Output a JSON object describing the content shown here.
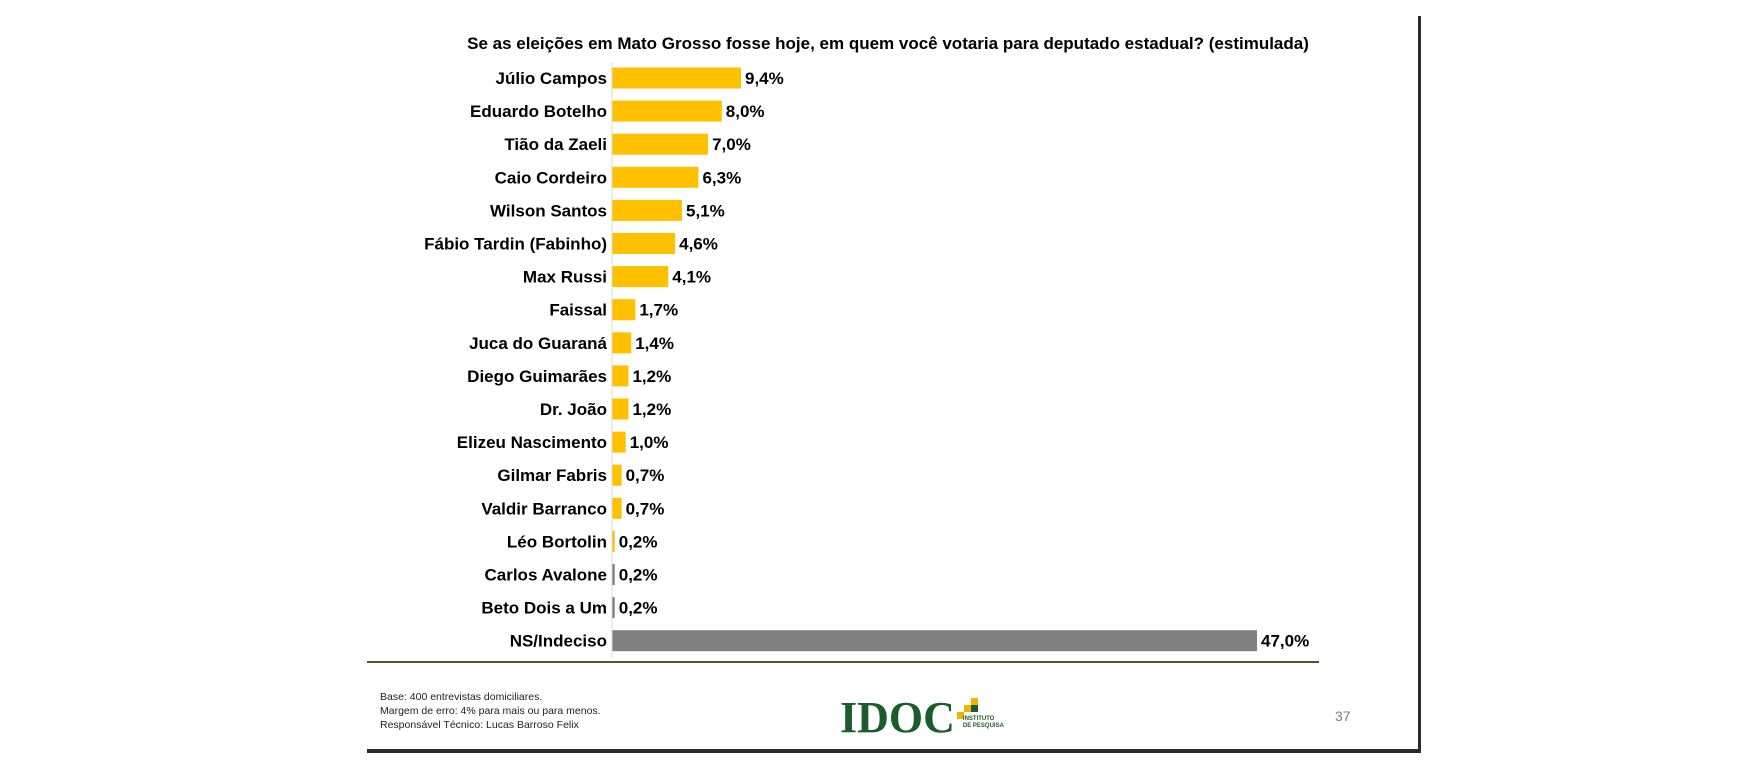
{
  "chart_data": {
    "type": "bar",
    "orientation": "horizontal",
    "title": "Se as eleições em Mato Grosso fosse hoje, em quem você votaria para deputado estadual? (estimulada)",
    "categories": [
      "Júlio Campos",
      "Eduardo Botelho",
      "Tião da Zaeli",
      "Caio Cordeiro",
      "Wilson Santos",
      "Fábio Tardin (Fabinho)",
      "Max Russi",
      "Faissal",
      "Juca do Guaraná",
      "Diego Guimarães",
      "Dr. João",
      "Elizeu Nascimento",
      "Gilmar Fabris",
      "Valdir Barranco",
      "Léo Bortolin",
      "Carlos Avalone",
      "Beto Dois a Um",
      "NS/Indeciso"
    ],
    "values": [
      9.4,
      8.0,
      7.0,
      6.3,
      5.1,
      4.6,
      4.1,
      1.7,
      1.4,
      1.2,
      1.2,
      1.0,
      0.7,
      0.7,
      0.2,
      0.2,
      0.2,
      47.0
    ],
    "value_labels": [
      "9,4%",
      "8,0%",
      "7,0%",
      "6,3%",
      "5,1%",
      "4,6%",
      "4,1%",
      "1,7%",
      "1,4%",
      "1,2%",
      "1,2%",
      "1,0%",
      "0,7%",
      "0,7%",
      "0,2%",
      "0,2%",
      "0,2%",
      "47,0%"
    ],
    "bar_colors": [
      "#FFC000",
      "#FFC000",
      "#FFC000",
      "#FFC000",
      "#FFC000",
      "#FFC000",
      "#FFC000",
      "#FFC000",
      "#FFC000",
      "#FFC000",
      "#FFC000",
      "#FFC000",
      "#FFC000",
      "#FFC000",
      "#FFC000",
      "#808080",
      "#808080",
      "#808080"
    ],
    "xlim": [
      0,
      47.0
    ],
    "grid": false,
    "legend": "none"
  },
  "footnotes": [
    "Base: 400 entrevistas domiciliares.",
    "Margem de erro: 4% para mais ou para menos.",
    "Responsável Técnico: Lucas Barroso Felix"
  ],
  "logo": {
    "name": "IDOC",
    "subtitle_line1": "INSTITUTO",
    "subtitle_line2": "DE PESQUISA"
  },
  "page_number": "37",
  "colors": {
    "accent": "#FFC000",
    "neutral_bar": "#808080",
    "brand_green": "#1a5c2a"
  }
}
